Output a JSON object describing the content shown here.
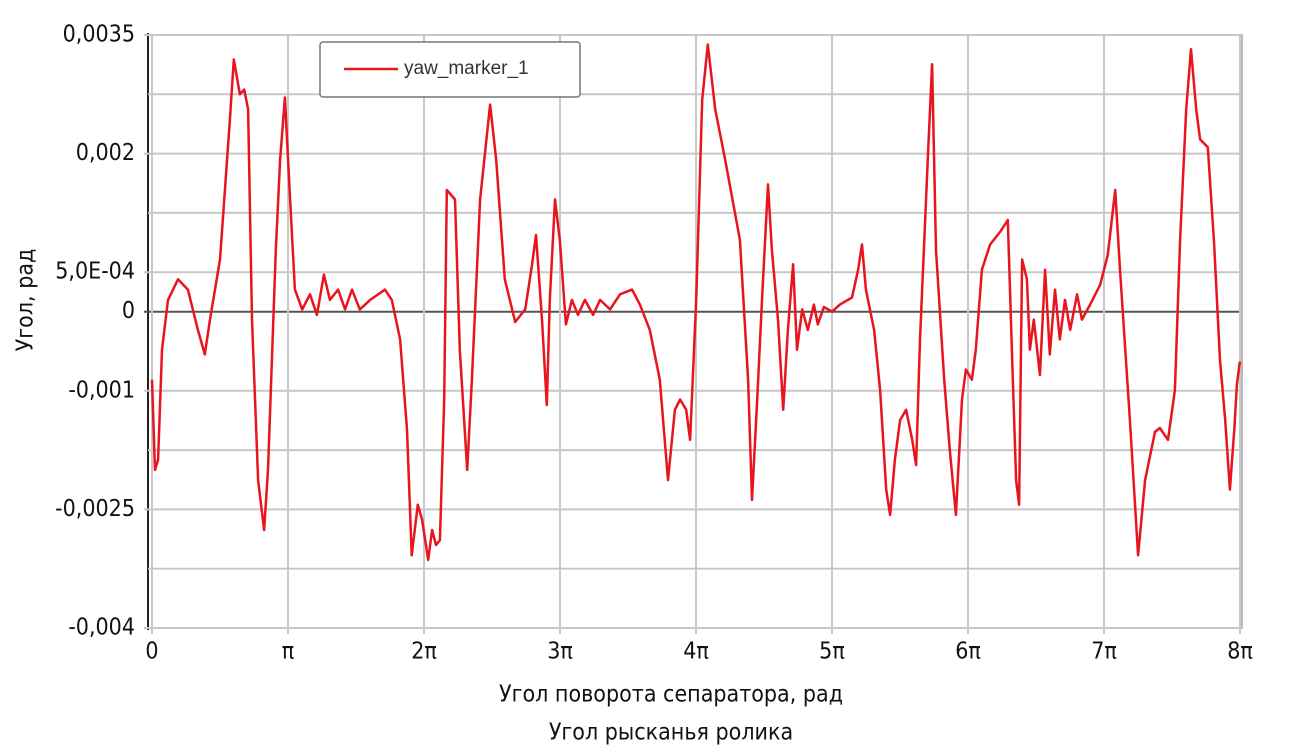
{
  "chart_data": {
    "type": "line",
    "x_label": [
      "Угол поворота сепаратора, рад",
      "Угол рысканья ролика"
    ],
    "y_label": "Угол, рад",
    "xlim": [
      0,
      25.13274
    ],
    "xticks": [
      0,
      {
        "value": 3.14159,
        "label": "π"
      },
      {
        "value": 6.28319,
        "label": "2π"
      },
      {
        "value": 9.42478,
        "label": "3π"
      },
      {
        "value": 12.56637,
        "label": "4π"
      },
      {
        "value": 15.70796,
        "label": "5π"
      },
      {
        "value": 18.84956,
        "label": "6π"
      },
      {
        "value": 21.99115,
        "label": "7π"
      },
      {
        "value": 25.13274,
        "label": "8π"
      }
    ],
    "ylim": [
      -0.004,
      0.0035
    ],
    "yticks": [
      {
        "value": 0.0035,
        "label": "0,0035"
      },
      {
        "value": 0.002,
        "label": "0,002"
      },
      {
        "value": 0.0005,
        "label": "5,0E-04"
      },
      0,
      {
        "value": -0.001,
        "label": "-0,001"
      },
      {
        "value": -0.0025,
        "label": "-0,0025"
      },
      {
        "value": -0.004,
        "label": "-0,004"
      }
    ],
    "y_gridlines": [
      0.00275,
      0.00125,
      -0.00175,
      -0.00325
    ],
    "grid": true,
    "zero_line": true,
    "legend": "top-left",
    "x": [
      0,
      0.07,
      0.14,
      0.23,
      0.37,
      0.6,
      0.83,
      1.06,
      1.22,
      1.34,
      1.57,
      1.8,
      1.89,
      2.03,
      2.13,
      2.22,
      2.31,
      2.45,
      2.59,
      2.68,
      2.86,
      2.96,
      3.07,
      3.19,
      3.3,
      3.47,
      3.65,
      3.81,
      3.97,
      4.11,
      4.3,
      4.46,
      4.62,
      4.8,
      5.04,
      5.38,
      5.54,
      5.73,
      5.89,
      6.0,
      6.14,
      6.24,
      6.38,
      6.47,
      6.56,
      6.65,
      6.75,
      6.81,
      7.0,
      7.11,
      7.28,
      7.39,
      7.58,
      7.81,
      7.95,
      8.15,
      8.39,
      8.62,
      8.78,
      8.87,
      9.01,
      9.12,
      9.19,
      9.31,
      9.42,
      9.56,
      9.7,
      9.84,
      10.0,
      10.19,
      10.35,
      10.58,
      10.81,
      11.09,
      11.27,
      11.5,
      11.73,
      11.92,
      12.08,
      12.2,
      12.34,
      12.43,
      12.57,
      12.71,
      12.84,
      13.01,
      13.24,
      13.58,
      13.77,
      13.86,
      13.98,
      14.09,
      14.23,
      14.32,
      14.46,
      14.58,
      14.69,
      14.81,
      14.9,
      15.02,
      15.15,
      15.29,
      15.38,
      15.52,
      15.71,
      15.89,
      16.17,
      16.31,
      16.4,
      16.49,
      16.68,
      16.82,
      16.96,
      17.05,
      17.16,
      17.28,
      17.42,
      17.56,
      17.65,
      17.74,
      17.93,
      18.02,
      18.11,
      18.3,
      18.43,
      18.57,
      18.71,
      18.8,
      18.94,
      19.03,
      19.17,
      19.36,
      19.59,
      19.77,
      19.87,
      19.96,
      20.03,
      20.1,
      20.21,
      20.28,
      20.37,
      20.51,
      20.63,
      20.74,
      20.86,
      20.97,
      21.09,
      21.21,
      21.37,
      21.48,
      21.67,
      21.9,
      22.08,
      22.25,
      22.36,
      22.59,
      22.78,
      22.94,
      23.17,
      23.28,
      23.47,
      23.63,
      23.75,
      23.89,
      24.0,
      24.12,
      24.21,
      24.39,
      24.53,
      24.67,
      24.79,
      24.9,
      25.0,
      25.06,
      25.13
    ],
    "series": [
      {
        "name": "yaw_marker_1",
        "color": "#e8141e",
        "values": [
          -0.00086,
          -0.002,
          -0.00187,
          -0.00048,
          0.00015,
          0.00041,
          0.00028,
          -0.00023,
          -0.00054,
          -0.0001,
          0.00066,
          0.00243,
          0.00319,
          0.00275,
          0.00281,
          0.00256,
          -0.0001,
          -0.00213,
          -0.00276,
          -0.002,
          0.00078,
          0.00192,
          0.00271,
          0.00142,
          0.00028,
          3e-05,
          0.00022,
          -4e-05,
          0.00047,
          0.00015,
          0.00028,
          3e-05,
          0.00028,
          3e-05,
          0.00015,
          0.00028,
          0.00015,
          -0.00035,
          -0.00149,
          -0.00308,
          -0.00244,
          -0.00263,
          -0.00314,
          -0.00276,
          -0.00295,
          -0.00289,
          -0.00111,
          0.00154,
          0.00142,
          -0.00048,
          -0.002,
          -0.00086,
          0.00142,
          0.00262,
          0.00192,
          0.00041,
          -0.00013,
          3e-05,
          0.0006,
          0.00097,
          -0.0001,
          -0.00118,
          0.00015,
          0.00142,
          0.00091,
          -0.00016,
          0.00015,
          -4e-05,
          0.00015,
          -4e-05,
          0.00015,
          3e-05,
          0.00022,
          0.00028,
          9e-05,
          -0.00023,
          -0.00086,
          -0.00213,
          -0.00124,
          -0.00111,
          -0.00124,
          -0.00162,
          0.00015,
          0.00268,
          0.00338,
          0.00256,
          0.00192,
          0.00091,
          -0.00086,
          -0.00238,
          -0.00111,
          0.00015,
          0.00161,
          0.00078,
          -0.0001,
          -0.00124,
          -0.00023,
          0.0006,
          -0.00048,
          3e-05,
          -0.00023,
          9e-05,
          -0.00016,
          6e-05,
          0,
          9e-05,
          0.00018,
          0.00053,
          0.00085,
          0.00028,
          -0.00023,
          -0.00099,
          -0.00225,
          -0.00257,
          -0.00187,
          -0.00137,
          -0.00124,
          -0.00162,
          -0.00194,
          -0.00035,
          0.00205,
          0.00313,
          0.00078,
          -0.00086,
          -0.00175,
          -0.00257,
          -0.00111,
          -0.00073,
          -0.00086,
          -0.00048,
          0.00053,
          0.00085,
          0.00101,
          0.00116,
          -0.00061,
          -0.00213,
          -0.00244,
          0.00066,
          0.00041,
          -0.00048,
          -0.0001,
          -0.0008,
          0.00053,
          -0.00054,
          0.00028,
          -0.00035,
          0.00015,
          -0.00023,
          0.00022,
          -0.0001,
          9e-05,
          0.00034,
          0.00072,
          0.00154,
          0.00053,
          -0.00137,
          -0.00308,
          -0.00213,
          -0.00152,
          -0.00147,
          -0.00162,
          -0.00099,
          0.00091,
          0.00256,
          0.00332,
          0.00256,
          0.00218,
          0.00208,
          0.00091,
          -0.00061,
          -0.00137,
          -0.00225,
          -0.00149,
          -0.00092,
          -0.00063
        ]
      }
    ]
  }
}
